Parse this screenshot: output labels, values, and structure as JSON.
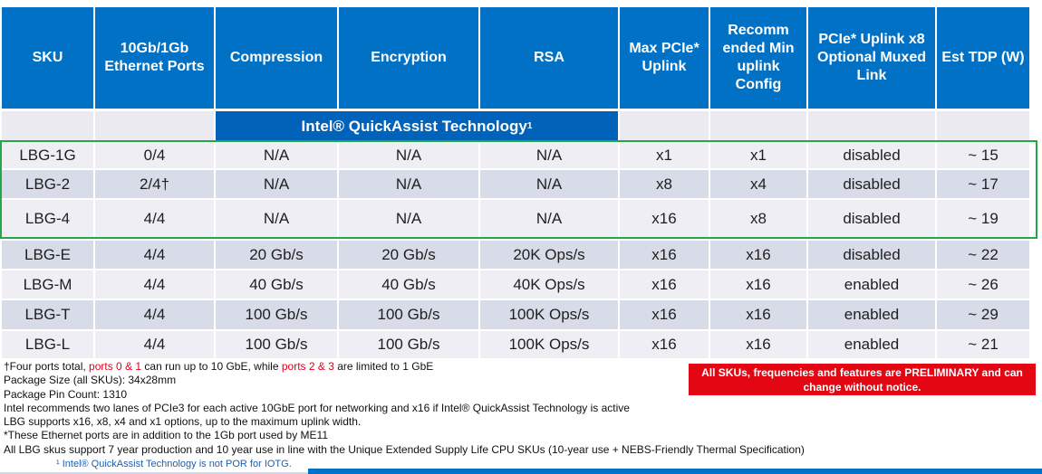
{
  "header": [
    "SKU",
    "10Gb/1Gb Ethernet Ports",
    "Compression",
    "Encryption",
    "RSA",
    "Max PCIe* Uplink",
    "Recomm ended Min uplink Config",
    "PCIe* Uplink x8 Optional Muxed Link",
    "Est TDP (W)"
  ],
  "qat_band": {
    "label": "Intel® QuickAssist Technology",
    "sup": "1"
  },
  "rows": [
    {
      "sku": "LBG-1G",
      "ports": "0/4",
      "compression": "N/A",
      "encryption": "N/A",
      "rsa": "N/A",
      "max_uplink": "x1",
      "min_uplink": "x1",
      "muxed": "disabled",
      "tdp": "~ 15"
    },
    {
      "sku": "LBG-2",
      "ports": "2/4†",
      "compression": "N/A",
      "encryption": "N/A",
      "rsa": "N/A",
      "max_uplink": "x8",
      "min_uplink": "x4",
      "muxed": "disabled",
      "tdp": "~ 17"
    },
    {
      "sku": "LBG-4",
      "ports": "4/4",
      "compression": "N/A",
      "encryption": "N/A",
      "rsa": "N/A",
      "max_uplink": "x16",
      "min_uplink": "x8",
      "muxed": "disabled",
      "tdp": "~ 19"
    },
    {
      "sku": "LBG-E",
      "ports": "4/4",
      "compression": "20 Gb/s",
      "encryption": "20 Gb/s",
      "rsa": "20K Ops/s",
      "max_uplink": "x16",
      "min_uplink": "x16",
      "muxed": "disabled",
      "tdp": "~ 22"
    },
    {
      "sku": "LBG-M",
      "ports": "4/4",
      "compression": "40 Gb/s",
      "encryption": "40 Gb/s",
      "rsa": "40K Ops/s",
      "max_uplink": "x16",
      "min_uplink": "x16",
      "muxed": "enabled",
      "tdp": "~ 26"
    },
    {
      "sku": "LBG-T",
      "ports": "4/4",
      "compression": "100 Gb/s",
      "encryption": "100 Gb/s",
      "rsa": "100K Ops/s",
      "max_uplink": "x16",
      "min_uplink": "x16",
      "muxed": "enabled",
      "tdp": "~ 29"
    },
    {
      "sku": "LBG-L",
      "ports": "4/4",
      "compression": "100 Gb/s",
      "encryption": "100 Gb/s",
      "rsa": "100K Ops/s",
      "max_uplink": "x16",
      "min_uplink": "x16",
      "muxed": "enabled",
      "tdp": "~ 21"
    }
  ],
  "notes": {
    "line1_a": "†Four ports total, ",
    "line1_red1": "ports 0 & 1",
    "line1_b": " can run up to 10 GbE, while ",
    "line1_red2": "ports 2 & 3",
    "line1_c": " are limited to 1 GbE",
    "line2": "Package Size (all SKUs): 34x28mm",
    "line3": "Package Pin Count: 1310",
    "line4": "Intel recommends two lanes of PCIe3 for each active 10GbE port for networking and x16 if Intel® QuickAssist Technology is active",
    "line5": "LBG supports x16, x8, x4 and x1 options, up to the maximum uplink width.",
    "line6": "*These Ethernet ports are in addition to the 1Gb port used by ME11",
    "line7": "All LBG skus support 7 year production and 10 year use in line with the Unique Extended Supply Life CPU SKUs (10-year use + NEBS-Friendly Thermal Specification)"
  },
  "warning": "All SKUs, frequencies and features are PRELIMINARY and can change without notice.",
  "footnote": "¹ Intel® QuickAssist Technology is not POR for IOTG.",
  "colors": {
    "header_blue": "#0071c5",
    "qat_blue": "#0062b8",
    "highlight_green": "#22a845",
    "warning_red": "#e30613"
  }
}
